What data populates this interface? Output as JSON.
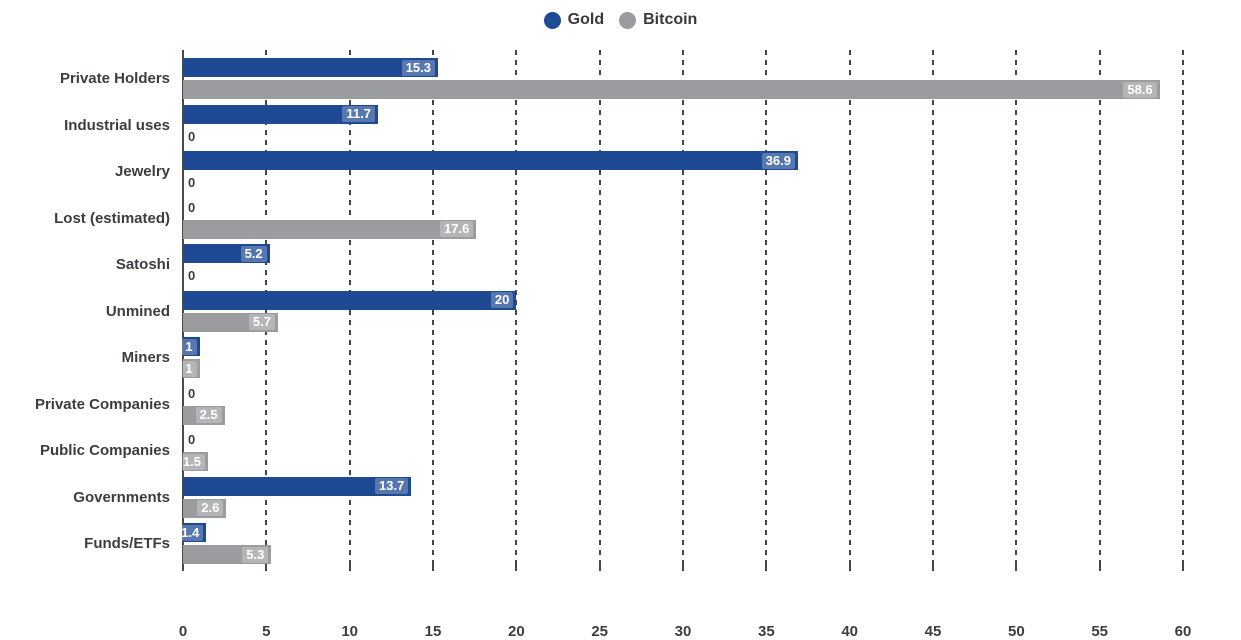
{
  "legend": {
    "items": [
      {
        "label": "Gold"
      },
      {
        "label": "Bitcoin"
      }
    ]
  },
  "chart_data": {
    "type": "bar",
    "orientation": "horizontal",
    "title": "",
    "xlabel": "",
    "ylabel": "",
    "categories": [
      "Private Holders",
      "Industrial uses",
      "Jewelry",
      "Lost (estimated)",
      "Satoshi",
      "Unmined",
      "Miners",
      "Private Companies",
      "Public Companies",
      "Governments",
      "Funds/ETFs"
    ],
    "series": [
      {
        "name": "Gold",
        "color": "#1e4a94",
        "values": [
          15.3,
          11.7,
          36.9,
          0,
          5.2,
          20,
          1,
          0,
          0,
          13.7,
          1.4
        ]
      },
      {
        "name": "Bitcoin",
        "color": "#9a9c9f",
        "values": [
          58.6,
          0,
          0,
          17.6,
          0,
          5.7,
          1,
          2.5,
          1.5,
          2.6,
          5.3
        ]
      }
    ],
    "xlim": [
      0,
      60
    ],
    "xticks": [
      0,
      5,
      10,
      15,
      20,
      25,
      30,
      35,
      40,
      45,
      50,
      55,
      60
    ],
    "grid": "vertical-dashed",
    "legend_position": "top-center",
    "value_label_style": "white bold inside bar end; zeros shown as dark 0 beside axis"
  }
}
